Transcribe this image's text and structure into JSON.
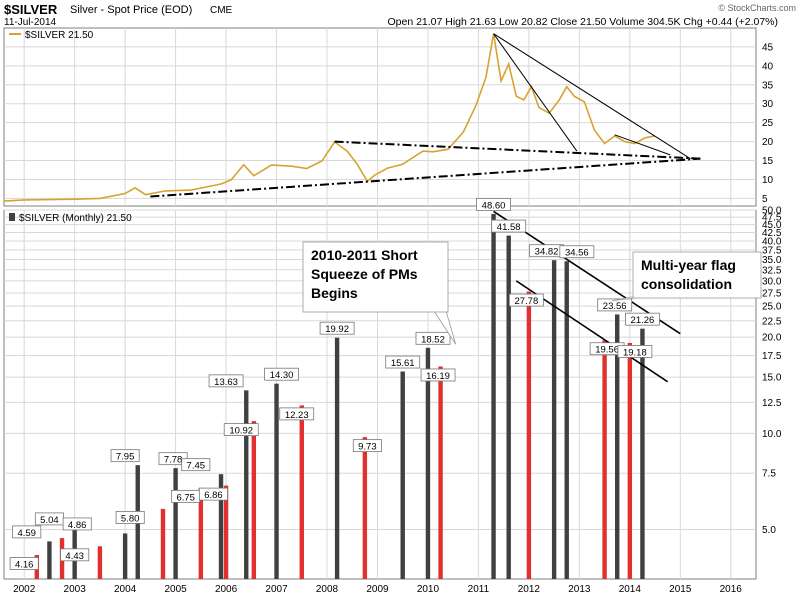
{
  "header": {
    "symbol": "$SILVER",
    "description": "Silver - Spot Price (EOD)",
    "exchange": "CME",
    "date": "11-Jul-2014",
    "ohlc": "Open 21.07   High 21.63   Low 20.82   Close 21.50   Volume 304.5K   Chg +0.44 (+2.07%)",
    "watermark": "© StockCharts.com"
  },
  "colors": {
    "up_bar": "#404040",
    "down_bar": "#e03030",
    "line": "#d8a232",
    "trend": "#000000",
    "grid": "#d8d8d8",
    "panel_border": "#7f7f7f"
  },
  "chart_data": [
    {
      "type": "line",
      "title": "$SILVER 21.50",
      "x_start": 2001.6,
      "x_end": 2016.5,
      "ylim": [
        3,
        50
      ],
      "y_ticks": [
        5,
        10,
        15,
        20,
        25,
        30,
        35,
        40,
        45
      ],
      "grid": true,
      "series": [
        {
          "name": "$SILVER 21.50",
          "x": [
            2001.6,
            2002.0,
            2002.5,
            2003.0,
            2003.5,
            2004.0,
            2004.2,
            2004.4,
            2004.8,
            2005.3,
            2005.9,
            2006.1,
            2006.35,
            2006.55,
            2006.9,
            2007.3,
            2007.6,
            2007.9,
            2008.15,
            2008.4,
            2008.6,
            2008.8,
            2008.95,
            2009.2,
            2009.5,
            2009.9,
            2010.1,
            2010.4,
            2010.7,
            2010.95,
            2011.15,
            2011.3,
            2011.45,
            2011.6,
            2011.75,
            2011.9,
            2012.05,
            2012.2,
            2012.4,
            2012.6,
            2012.75,
            2012.9,
            2013.1,
            2013.3,
            2013.5,
            2013.7,
            2013.9,
            2014.1,
            2014.3,
            2014.5
          ],
          "y": [
            4.3,
            4.6,
            4.7,
            4.8,
            5.0,
            6.3,
            7.8,
            6.0,
            7.0,
            7.2,
            8.8,
            9.9,
            13.9,
            11.0,
            13.8,
            13.5,
            12.9,
            14.9,
            19.9,
            17.5,
            14.0,
            9.5,
            11.2,
            13.0,
            14.0,
            17.5,
            17.3,
            18.0,
            22.5,
            29.5,
            37.0,
            48.5,
            36.0,
            40.5,
            32.0,
            31.0,
            34.5,
            29.0,
            27.5,
            31.0,
            34.5,
            32.0,
            30.5,
            23.0,
            19.5,
            21.5,
            20.0,
            19.5,
            21.0,
            21.5
          ]
        }
      ],
      "trendlines": [
        {
          "x1": 2004.5,
          "y1": 5.5,
          "x2": 2015.4,
          "y2": 15.5
        },
        {
          "x1": 2008.15,
          "y1": 20.0,
          "x2": 2015.4,
          "y2": 15.5
        },
        {
          "x1": 2011.3,
          "y1": 48.5,
          "x2": 2015.2,
          "y2": 15.5
        },
        {
          "x1": 2011.3,
          "y1": 48.5,
          "x2": 2012.95,
          "y2": 17.5
        },
        {
          "x1": 2013.7,
          "y1": 21.8,
          "x2": 2014.8,
          "y2": 16.5
        }
      ]
    },
    {
      "type": "bar",
      "title": "$SILVER (Monthly) 21.50",
      "scale": "log",
      "x_start": 2001.6,
      "x_end": 2016.5,
      "ylim": [
        3.5,
        50
      ],
      "y_ticks": [
        5,
        7.5,
        10,
        12.5,
        15,
        17.5,
        20,
        22.5,
        25,
        27.5,
        30,
        32.5,
        35,
        37.5,
        40,
        42.5,
        45,
        47.5,
        50
      ],
      "x_ticks": [
        2002,
        2003,
        2004,
        2005,
        2006,
        2007,
        2008,
        2009,
        2010,
        2011,
        2012,
        2013,
        2014,
        2015,
        2016
      ],
      "grid": true,
      "bars": [
        {
          "year": 2002.25,
          "y": 4.16,
          "up": false
        },
        {
          "year": 2002.5,
          "y": 4.59,
          "up": true
        },
        {
          "year": 2002.75,
          "y": 4.7,
          "up": false
        },
        {
          "year": 2003.0,
          "y": 5.04,
          "up": true
        },
        {
          "year": 2003.5,
          "y": 4.43,
          "up": false
        },
        {
          "year": 2004.0,
          "y": 4.86,
          "up": true
        },
        {
          "year": 2004.25,
          "y": 7.95,
          "up": true
        },
        {
          "year": 2004.75,
          "y": 5.8,
          "up": false
        },
        {
          "year": 2005.0,
          "y": 7.78,
          "up": true
        },
        {
          "year": 2005.5,
          "y": 6.75,
          "up": false
        },
        {
          "year": 2005.9,
          "y": 7.45,
          "up": true
        },
        {
          "year": 2006.0,
          "y": 6.86,
          "up": false
        },
        {
          "year": 2006.4,
          "y": 13.63,
          "up": true
        },
        {
          "year": 2006.55,
          "y": 10.92,
          "up": false
        },
        {
          "year": 2007.0,
          "y": 14.3,
          "up": true
        },
        {
          "year": 2007.5,
          "y": 12.23,
          "up": false
        },
        {
          "year": 2008.2,
          "y": 19.92,
          "up": true
        },
        {
          "year": 2008.75,
          "y": 9.73,
          "up": false
        },
        {
          "year": 2009.5,
          "y": 15.61,
          "up": true
        },
        {
          "year": 2010.0,
          "y": 18.52,
          "up": true
        },
        {
          "year": 2010.25,
          "y": 16.19,
          "up": false
        },
        {
          "year": 2011.3,
          "y": 48.6,
          "up": true
        },
        {
          "year": 2011.6,
          "y": 41.58,
          "up": true
        },
        {
          "year": 2012.0,
          "y": 27.78,
          "up": false
        },
        {
          "year": 2012.5,
          "y": 34.82,
          "up": true
        },
        {
          "year": 2012.75,
          "y": 34.56,
          "up": true
        },
        {
          "year": 2013.5,
          "y": 19.56,
          "up": false
        },
        {
          "year": 2013.75,
          "y": 23.56,
          "up": true
        },
        {
          "year": 2014.0,
          "y": 19.18,
          "up": false
        },
        {
          "year": 2014.25,
          "y": 21.26,
          "up": true
        }
      ],
      "data_labels": [
        {
          "year": 2002.0,
          "value": 4.16,
          "text": "4.16",
          "pos": "below"
        },
        {
          "year": 2002.05,
          "value": 4.59,
          "text": "4.59",
          "pos": "above"
        },
        {
          "year": 2002.5,
          "value": 5.04,
          "text": "5.04",
          "pos": "above"
        },
        {
          "year": 2003.0,
          "value": 4.43,
          "text": "4.43",
          "pos": "below"
        },
        {
          "year": 2003.05,
          "value": 4.86,
          "text": "4.86",
          "pos": "above"
        },
        {
          "year": 2004.0,
          "value": 7.95,
          "text": "7.95",
          "pos": "above"
        },
        {
          "year": 2004.1,
          "value": 5.8,
          "text": "5.80",
          "pos": "below"
        },
        {
          "year": 2004.95,
          "value": 7.78,
          "text": "7.78",
          "pos": "above"
        },
        {
          "year": 2005.2,
          "value": 6.75,
          "text": "6.75",
          "pos": "below"
        },
        {
          "year": 2005.4,
          "value": 7.45,
          "text": "7.45",
          "pos": "above"
        },
        {
          "year": 2005.75,
          "value": 6.86,
          "text": "6.86",
          "pos": "below"
        },
        {
          "year": 2006.0,
          "value": 13.63,
          "text": "13.63",
          "pos": "above"
        },
        {
          "year": 2006.3,
          "value": 10.92,
          "text": "10.92",
          "pos": "below"
        },
        {
          "year": 2007.1,
          "value": 14.3,
          "text": "14.30",
          "pos": "above"
        },
        {
          "year": 2007.4,
          "value": 12.23,
          "text": "12.23",
          "pos": "below"
        },
        {
          "year": 2008.2,
          "value": 19.92,
          "text": "19.92",
          "pos": "above"
        },
        {
          "year": 2008.8,
          "value": 9.73,
          "text": "9.73",
          "pos": "below"
        },
        {
          "year": 2009.5,
          "value": 15.61,
          "text": "15.61",
          "pos": "above"
        },
        {
          "year": 2010.1,
          "value": 18.52,
          "text": "18.52",
          "pos": "above"
        },
        {
          "year": 2010.2,
          "value": 16.19,
          "text": "16.19",
          "pos": "below"
        },
        {
          "year": 2011.3,
          "value": 48.6,
          "text": "48.60",
          "pos": "above"
        },
        {
          "year": 2011.6,
          "value": 41.58,
          "text": "41.58",
          "pos": "above"
        },
        {
          "year": 2011.95,
          "value": 27.78,
          "text": "27.78",
          "pos": "below"
        },
        {
          "year": 2012.35,
          "value": 34.82,
          "text": "34.82",
          "pos": "above"
        },
        {
          "year": 2012.95,
          "value": 34.56,
          "text": "34.56",
          "pos": "above"
        },
        {
          "year": 2013.55,
          "value": 19.56,
          "text": "19.56",
          "pos": "below"
        },
        {
          "year": 2013.7,
          "value": 23.56,
          "text": "23.56",
          "pos": "above"
        },
        {
          "year": 2014.1,
          "value": 19.18,
          "text": "19.18",
          "pos": "below"
        },
        {
          "year": 2014.25,
          "value": 21.26,
          "text": "21.26",
          "pos": "above"
        }
      ],
      "trendlines": [
        {
          "x1": 2011.3,
          "y1": 49.5,
          "x2": 2015.0,
          "y2": 20.5
        },
        {
          "x1": 2011.75,
          "y1": 30.0,
          "x2": 2014.75,
          "y2": 14.5
        }
      ],
      "annotations": [
        {
          "text": [
            "2010-2011 Short",
            "Squeeze of PMs",
            "Begins"
          ],
          "target_year": 2010.55,
          "target_value": 19.0
        },
        {
          "text": [
            "Multi-year flag",
            "consolidation"
          ],
          "target_year": 2013.65,
          "target_value": 26.0
        }
      ]
    }
  ]
}
